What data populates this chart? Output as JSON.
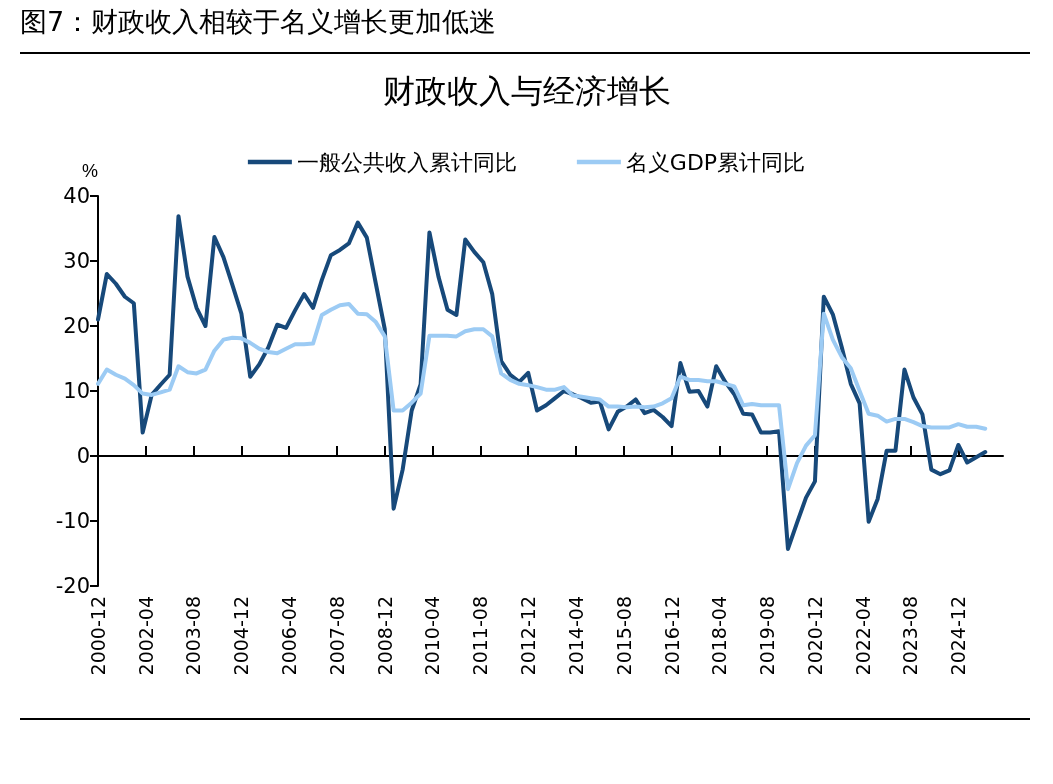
{
  "chart_data": {
    "type": "line",
    "title": "图7：财政收入相较于名义增长更加低迷",
    "subtitle": "财政收入与经济增长",
    "ylabel": "%",
    "x": [
      "2000-12",
      "2001-03",
      "2001-06",
      "2001-09",
      "2001-12",
      "2002-03",
      "2002-06",
      "2002-09",
      "2002-12",
      "2003-03",
      "2003-06",
      "2003-09",
      "2003-12",
      "2004-03",
      "2004-06",
      "2004-09",
      "2004-12",
      "2005-03",
      "2005-06",
      "2005-09",
      "2005-12",
      "2006-03",
      "2006-06",
      "2006-09",
      "2006-12",
      "2007-03",
      "2007-06",
      "2007-09",
      "2007-12",
      "2008-03",
      "2008-06",
      "2008-09",
      "2008-12",
      "2009-03",
      "2009-06",
      "2009-09",
      "2009-12",
      "2010-03",
      "2010-06",
      "2010-09",
      "2010-12",
      "2011-03",
      "2011-06",
      "2011-09",
      "2011-12",
      "2012-03",
      "2012-06",
      "2012-09",
      "2012-12",
      "2013-03",
      "2013-06",
      "2013-09",
      "2013-12",
      "2014-03",
      "2014-06",
      "2014-09",
      "2014-12",
      "2015-03",
      "2015-06",
      "2015-09",
      "2015-12",
      "2016-03",
      "2016-06",
      "2016-09",
      "2016-12",
      "2017-03",
      "2017-06",
      "2017-09",
      "2017-12",
      "2018-03",
      "2018-06",
      "2018-09",
      "2018-12",
      "2019-03",
      "2019-06",
      "2019-09",
      "2019-12",
      "2020-03",
      "2020-06",
      "2020-09",
      "2020-12",
      "2021-03",
      "2021-06",
      "2021-09",
      "2021-12",
      "2022-03",
      "2022-06",
      "2022-09",
      "2022-12",
      "2023-03",
      "2023-06",
      "2023-09",
      "2023-12",
      "2024-03",
      "2024-06",
      "2024-09",
      "2024-12",
      "2025-03",
      "2025-06",
      "2025-09"
    ],
    "series": [
      {
        "name": "一般公共收入累计同比",
        "color": "#17497a",
        "values": [
          21,
          28,
          26.5,
          24.5,
          23.5,
          3.6,
          9.4,
          11,
          12.5,
          36.9,
          27.6,
          22.8,
          20,
          33.7,
          30.6,
          26.3,
          21.9,
          12.2,
          14.1,
          16.7,
          20.2,
          19.7,
          22.4,
          24.9,
          22.8,
          27.1,
          30.9,
          31.7,
          32.7,
          35.9,
          33.6,
          26.5,
          19.5,
          -8.1,
          -2.1,
          7,
          11,
          34.4,
          27.6,
          22.5,
          21.7,
          33.3,
          31.4,
          29.8,
          24.9,
          14.6,
          12.5,
          11.4,
          12.8,
          7,
          7.8,
          8.9,
          10,
          9.5,
          8.9,
          8.2,
          8.4,
          4.1,
          6.8,
          7.6,
          8.7,
          6.6,
          7.1,
          6,
          4.6,
          14.3,
          9.9,
          10,
          7.6,
          13.8,
          11.4,
          9.5,
          6.5,
          6.4,
          3.6,
          3.6,
          3.8,
          -14.3,
          -10.3,
          -6.4,
          -3.9,
          24.5,
          21.8,
          16.7,
          11.1,
          8.1,
          -10.1,
          -6.6,
          0.8,
          0.8,
          13.3,
          9,
          6.4,
          -2.1,
          -2.8,
          -2.2,
          1.7,
          -1,
          -0.2,
          0.6
        ]
      },
      {
        "name": "名义GDP累计同比",
        "color": "#9ccbf4",
        "values": [
          11.1,
          13.3,
          12.5,
          11.9,
          10.9,
          9.6,
          9.4,
          9.8,
          10.2,
          13.8,
          12.9,
          12.7,
          13.3,
          16.2,
          17.9,
          18.2,
          18.1,
          17.4,
          16.5,
          16,
          15.8,
          16.5,
          17.2,
          17.2,
          17.3,
          21.7,
          22.5,
          23.2,
          23.4,
          21.9,
          21.8,
          20.6,
          18.4,
          7,
          7,
          8.2,
          9.6,
          18.5,
          18.5,
          18.5,
          18.4,
          19.2,
          19.5,
          19.5,
          18.4,
          12.7,
          11.7,
          11.1,
          10.9,
          10.6,
          10.2,
          10.2,
          10.6,
          9.3,
          9.1,
          8.9,
          8.7,
          7.6,
          7.6,
          7.5,
          7.6,
          7.5,
          7.6,
          8.1,
          8.9,
          12.2,
          11.7,
          11.7,
          11.5,
          11.5,
          11.1,
          10.7,
          7.8,
          8,
          7.8,
          7.8,
          7.8,
          -5.1,
          -1.1,
          1.6,
          3.2,
          21.9,
          17.9,
          15.2,
          13.5,
          10,
          6.5,
          6.2,
          5.3,
          5.7,
          5.7,
          5.2,
          4.6,
          4.4,
          4.4,
          4.4,
          4.9,
          4.5,
          4.5,
          4.2
        ]
      }
    ],
    "xlim": [
      "2000-12",
      "2026-03"
    ],
    "xticks": [
      "2000-12",
      "2002-04",
      "2003-08",
      "2004-12",
      "2006-04",
      "2007-08",
      "2008-12",
      "2010-04",
      "2011-08",
      "2012-12",
      "2014-04",
      "2015-08",
      "2016-12",
      "2018-04",
      "2019-08",
      "2020-12",
      "2022-04",
      "2023-08",
      "2024-12"
    ],
    "ylim": [
      -20,
      40
    ],
    "yticks": [
      -20,
      -10,
      0,
      10,
      20,
      30,
      40
    ],
    "legend": "top",
    "marker": "none",
    "line_style": "solid"
  }
}
